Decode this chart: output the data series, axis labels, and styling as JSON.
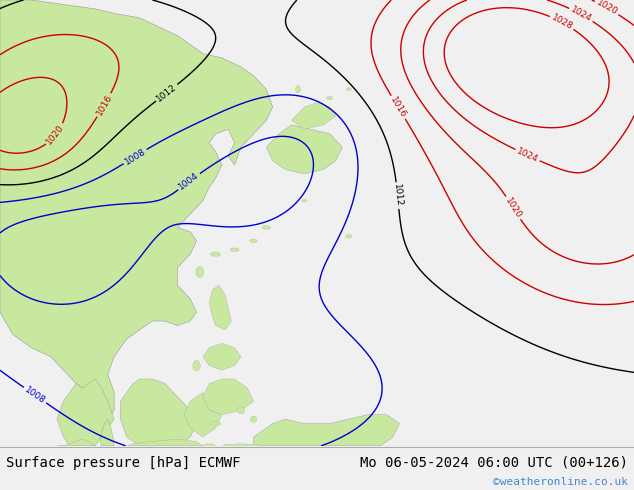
{
  "title_left": "Surface pressure [hPa] ECMWF",
  "title_right": "Mo 06-05-2024 06:00 UTC (00+126)",
  "copyright": "©weatheronline.co.uk",
  "bg_color": "#f0f0f0",
  "ocean_color": "#f0f0f0",
  "land_color": "#c8e8a0",
  "title_fontsize": 10,
  "copyright_color": "#4488cc",
  "font_family": "monospace",
  "color_blue": "#0000cc",
  "color_black": "#000000",
  "color_red": "#cc0000",
  "color_gray_land_edge": "#999999"
}
